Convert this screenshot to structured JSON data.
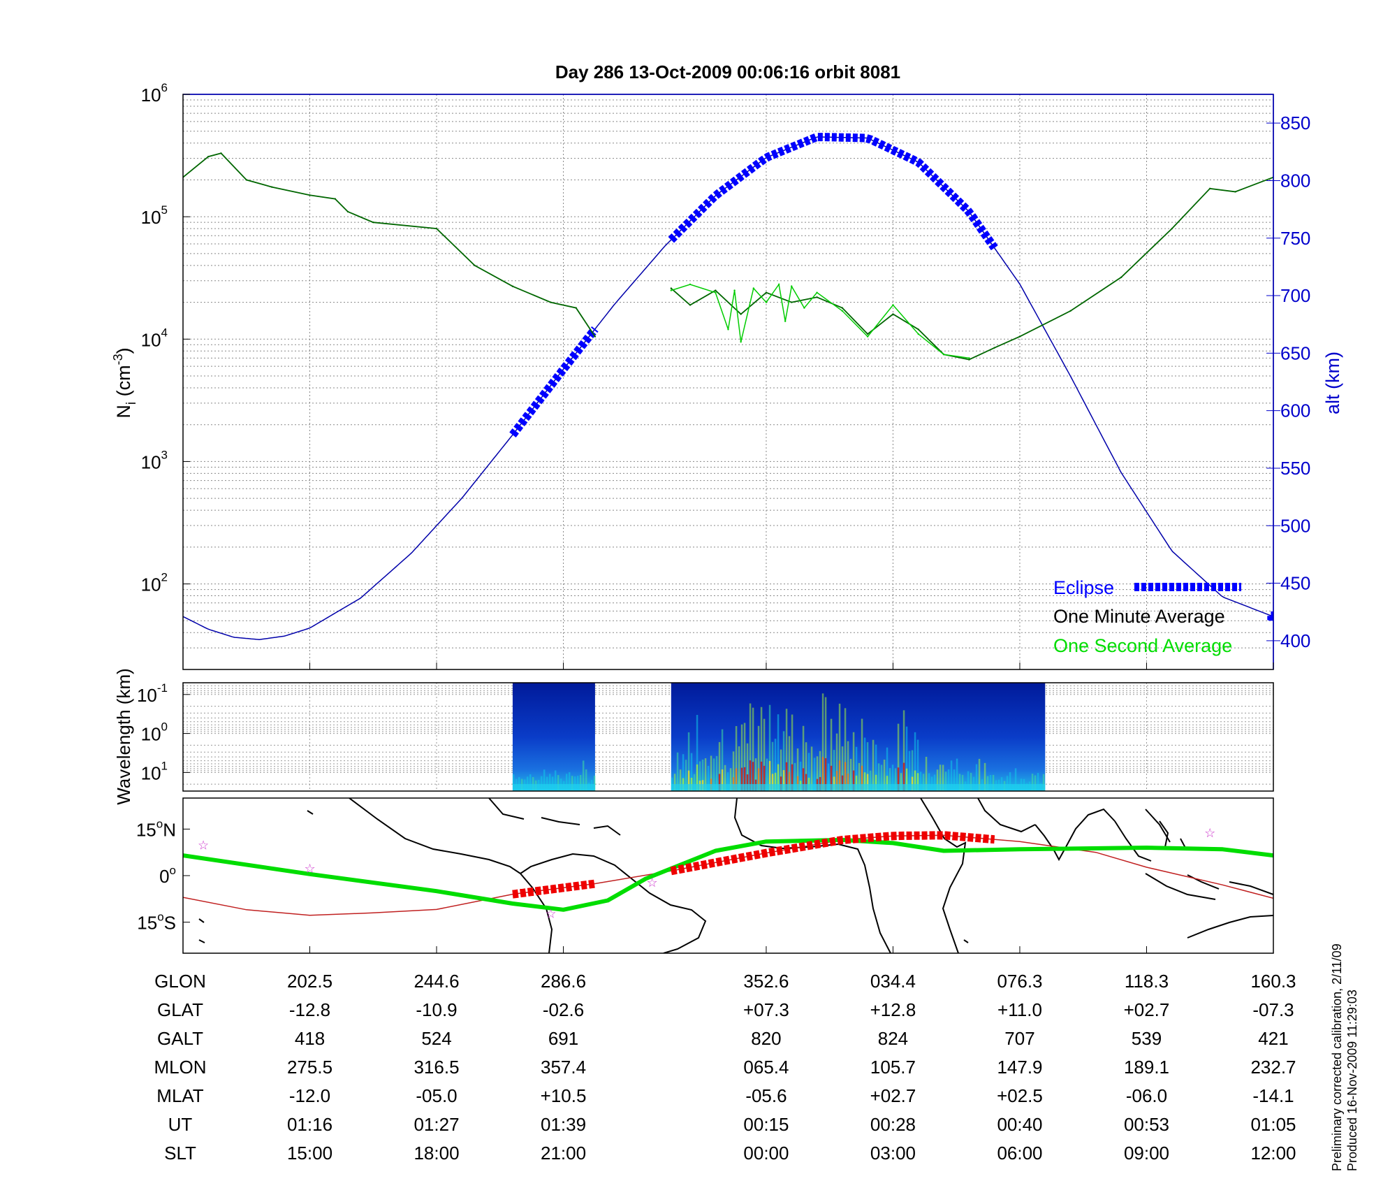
{
  "title": "Day 286  13-Oct-2009 00:06:16   orbit 8081",
  "footnote": [
    "Preliminary corrected calibration, 2/11/09",
    "Produced 16-Nov-2009 11:29:03"
  ],
  "colors": {
    "eclipse": "#0000ff",
    "minute_avg": "#000000",
    "second_avg": "#00dd00",
    "altitude": "#0000aa",
    "track_dark": "#ee0000",
    "track_line": "#c02020",
    "terminator": "#00dd00",
    "stars": "#cc33cc"
  },
  "chart_data": [
    {
      "type": "line",
      "name": "density_and_altitude",
      "ylabel": "Ni (cm-3)",
      "ylabel_parts": {
        "base": "N",
        "sub": "i",
        "unit_open": " (cm",
        "sup": "-3",
        "unit_close": ")"
      },
      "yscale": "log",
      "ylim": [
        20,
        1000000
      ],
      "y_ticks": [
        {
          "base": "10",
          "exp": "2"
        },
        {
          "base": "10",
          "exp": "3"
        },
        {
          "base": "10",
          "exp": "4"
        },
        {
          "base": "10",
          "exp": "5"
        },
        {
          "base": "10",
          "exp": "6"
        }
      ],
      "y_tick_values": [
        100,
        1000,
        10000,
        100000,
        1000000
      ],
      "y2label": "alt (km)",
      "y2lim": [
        375,
        875
      ],
      "y2_ticks": [
        "400",
        "450",
        "500",
        "550",
        "600",
        "650",
        "700",
        "750",
        "800",
        "850"
      ],
      "y2_tick_values": [
        400,
        450,
        500,
        550,
        600,
        650,
        700,
        750,
        800,
        850
      ],
      "xlim": [
        0,
        8.6
      ],
      "x_ticks": [
        1,
        2,
        3,
        4.6,
        5.6,
        6.6,
        7.6,
        8.6
      ],
      "grid": true,
      "legend_position": "bottom-right",
      "legend": [
        {
          "label": "Eclipse",
          "color": "#0000ff",
          "style": "thick-dashed"
        },
        {
          "label": "One Minute Average",
          "color": "#000000",
          "style": "text"
        },
        {
          "label": "One Second Average",
          "color": "#00dd00",
          "style": "text"
        }
      ],
      "series": [
        {
          "name": "One Minute Average",
          "color": "#006600",
          "segments": [
            {
              "x": [
                0,
                0.2,
                0.3,
                0.5,
                0.7,
                1.0,
                1.2,
                1.3,
                1.5,
                2.0,
                2.3,
                2.6,
                2.9,
                3.1,
                3.25
              ],
              "y": [
                210000,
                310000,
                330000,
                200000,
                175000,
                150000,
                140000,
                110000,
                90000,
                80000,
                40000,
                27000,
                20000,
                18000,
                10500
              ]
            },
            {
              "x": [
                3.85,
                4.0,
                4.2,
                4.4,
                4.6,
                4.8,
                5.0,
                5.2,
                5.4,
                5.6,
                5.8,
                6.0,
                6.2,
                6.4,
                6.6,
                7.0,
                7.4,
                7.8,
                8.1,
                8.3,
                8.6
              ],
              "y": [
                26000,
                19000,
                25000,
                16000,
                24000,
                20000,
                22000,
                18000,
                11000,
                16000,
                12000,
                7500,
                6800,
                8500,
                10500,
                17000,
                32000,
                80000,
                170000,
                160000,
                210000
              ]
            }
          ]
        },
        {
          "name": "One Second Average",
          "color": "#00cc00",
          "segments": [
            {
              "x": [
                3.85,
                4.0,
                4.2,
                4.3,
                4.35,
                4.4,
                4.5,
                4.6,
                4.7,
                4.75,
                4.8,
                4.9,
                5.0,
                5.2,
                5.4,
                5.6,
                5.8,
                6.0,
                6.2
              ],
              "y": [
                25000,
                28000,
                24000,
                12000,
                25000,
                9500,
                26000,
                20000,
                28000,
                14000,
                27000,
                18000,
                24000,
                17000,
                10500,
                19000,
                11000,
                7500,
                7000
              ]
            }
          ]
        },
        {
          "name": "Altitude",
          "axis": "y2",
          "color": "#0000aa",
          "segments": [
            {
              "x": [
                0,
                0.2,
                0.4,
                0.6,
                0.8,
                1.0,
                1.4,
                1.8,
                2.2,
                2.6,
                3.0,
                3.4,
                3.8,
                4.2,
                4.6,
                5.0,
                5.4,
                5.8,
                6.2,
                6.6,
                7.0,
                7.4,
                7.8,
                8.2,
                8.6
              ],
              "y": [
                421,
                410,
                403,
                401,
                404,
                411,
                437,
                476,
                524,
                579,
                636,
                692,
                743,
                787,
                820,
                838,
                837,
                816,
                773,
                710,
                630,
                546,
                478,
                438,
                421
              ]
            }
          ]
        }
      ],
      "eclipse_intervals": [
        [
          2.6,
          3.25
        ],
        [
          3.85,
          6.4
        ],
        [
          8.58,
          8.6
        ]
      ]
    },
    {
      "type": "heatmap",
      "name": "wavelength_spectrogram",
      "ylabel": "Wavelength (km)",
      "yscale": "log",
      "y_ticks": [
        {
          "base": "10",
          "exp": "-1"
        },
        {
          "base": "10",
          "exp": "0"
        },
        {
          "base": "10",
          "exp": "1"
        }
      ],
      "y_tick_values": [
        0.1,
        1,
        10
      ],
      "xlim": [
        0,
        8.6
      ],
      "data_intervals": [
        [
          2.6,
          3.25
        ],
        [
          3.85,
          6.8
        ]
      ],
      "intensity_profile": {
        "x": [
          3.85,
          4.1,
          4.3,
          4.6,
          4.75,
          4.85,
          5.0,
          5.2,
          5.3,
          5.55,
          5.7,
          5.9,
          6.2,
          6.5,
          6.8
        ],
        "level": [
          0.4,
          0.8,
          0.7,
          0.9,
          1.0,
          0.9,
          0.8,
          0.95,
          0.7,
          0.6,
          0.7,
          0.45,
          0.3,
          0.25,
          0.2
        ]
      }
    },
    {
      "type": "scatter",
      "name": "orbit_track_map",
      "y_ticks": [
        {
          "num": "15",
          "deg": "o",
          "dir": "N"
        },
        {
          "num": "0",
          "deg": "o",
          "dir": ""
        },
        {
          "num": "15",
          "deg": "o",
          "dir": "S"
        }
      ],
      "y_tick_values": [
        15,
        0,
        -15
      ],
      "ylim": [
        -25,
        25
      ],
      "xlim": [
        0,
        8.6
      ],
      "satellite_track": {
        "x": [
          0,
          0.5,
          1.0,
          1.5,
          2.0,
          2.6,
          3.25,
          3.85,
          4.6,
          5.2,
          5.6,
          6.0,
          6.6,
          7.2,
          7.6,
          8.2,
          8.6
        ],
        "lat": [
          -7,
          -11,
          -12.8,
          -12,
          -10.9,
          -6,
          -2.6,
          1.5,
          7.3,
          11.5,
          12.8,
          13,
          11,
          7.5,
          2.7,
          -3,
          -7.3
        ]
      },
      "terminator": {
        "x": [
          0,
          1.0,
          2.0,
          2.6,
          3.0,
          3.35,
          3.65,
          4.2,
          4.6,
          5.2,
          5.6,
          6.0,
          6.6,
          7.6,
          8.2,
          8.6
        ],
        "lat": [
          6.5,
          0.5,
          -5,
          -9,
          -11,
          -8,
          -1,
          8,
          11,
          11.5,
          10.5,
          8,
          8.5,
          9,
          8.5,
          6.5
        ]
      },
      "stars": [
        {
          "x": 0.16,
          "lat": 10
        },
        {
          "x": 1.0,
          "lat": 2.5
        },
        {
          "x": 2.9,
          "lat": -12
        },
        {
          "x": 3.7,
          "lat": -2
        },
        {
          "x": 8.1,
          "lat": 14
        }
      ],
      "eclipse_intervals": [
        [
          2.6,
          3.25
        ],
        [
          3.85,
          6.4
        ]
      ]
    }
  ],
  "table": {
    "row_labels": [
      "GLON",
      "GLAT",
      "GALT",
      "MLON",
      "MLAT",
      "UT",
      "SLT"
    ],
    "columns": [
      [
        "202.5",
        "-12.8",
        "418",
        "275.5",
        "-12.0",
        "01:16",
        "15:00"
      ],
      [
        "244.6",
        "-10.9",
        "524",
        "316.5",
        "-05.0",
        "01:27",
        "18:00"
      ],
      [
        "286.6",
        "-02.6",
        "691",
        "357.4",
        "+10.5",
        "01:39",
        "21:00"
      ],
      [
        "352.6",
        "+07.3",
        "820",
        "065.4",
        "-05.6",
        "00:15",
        "00:00"
      ],
      [
        "034.4",
        "+12.8",
        "824",
        "105.7",
        "+02.7",
        "00:28",
        "03:00"
      ],
      [
        "076.3",
        "+11.0",
        "707",
        "147.9",
        "+02.5",
        "00:40",
        "06:00"
      ],
      [
        "118.3",
        "+02.7",
        "539",
        "189.1",
        "-06.0",
        "00:53",
        "09:00"
      ],
      [
        "160.3",
        "-07.3",
        "421",
        "232.7",
        "-14.1",
        "01:05",
        "12:00"
      ]
    ]
  }
}
